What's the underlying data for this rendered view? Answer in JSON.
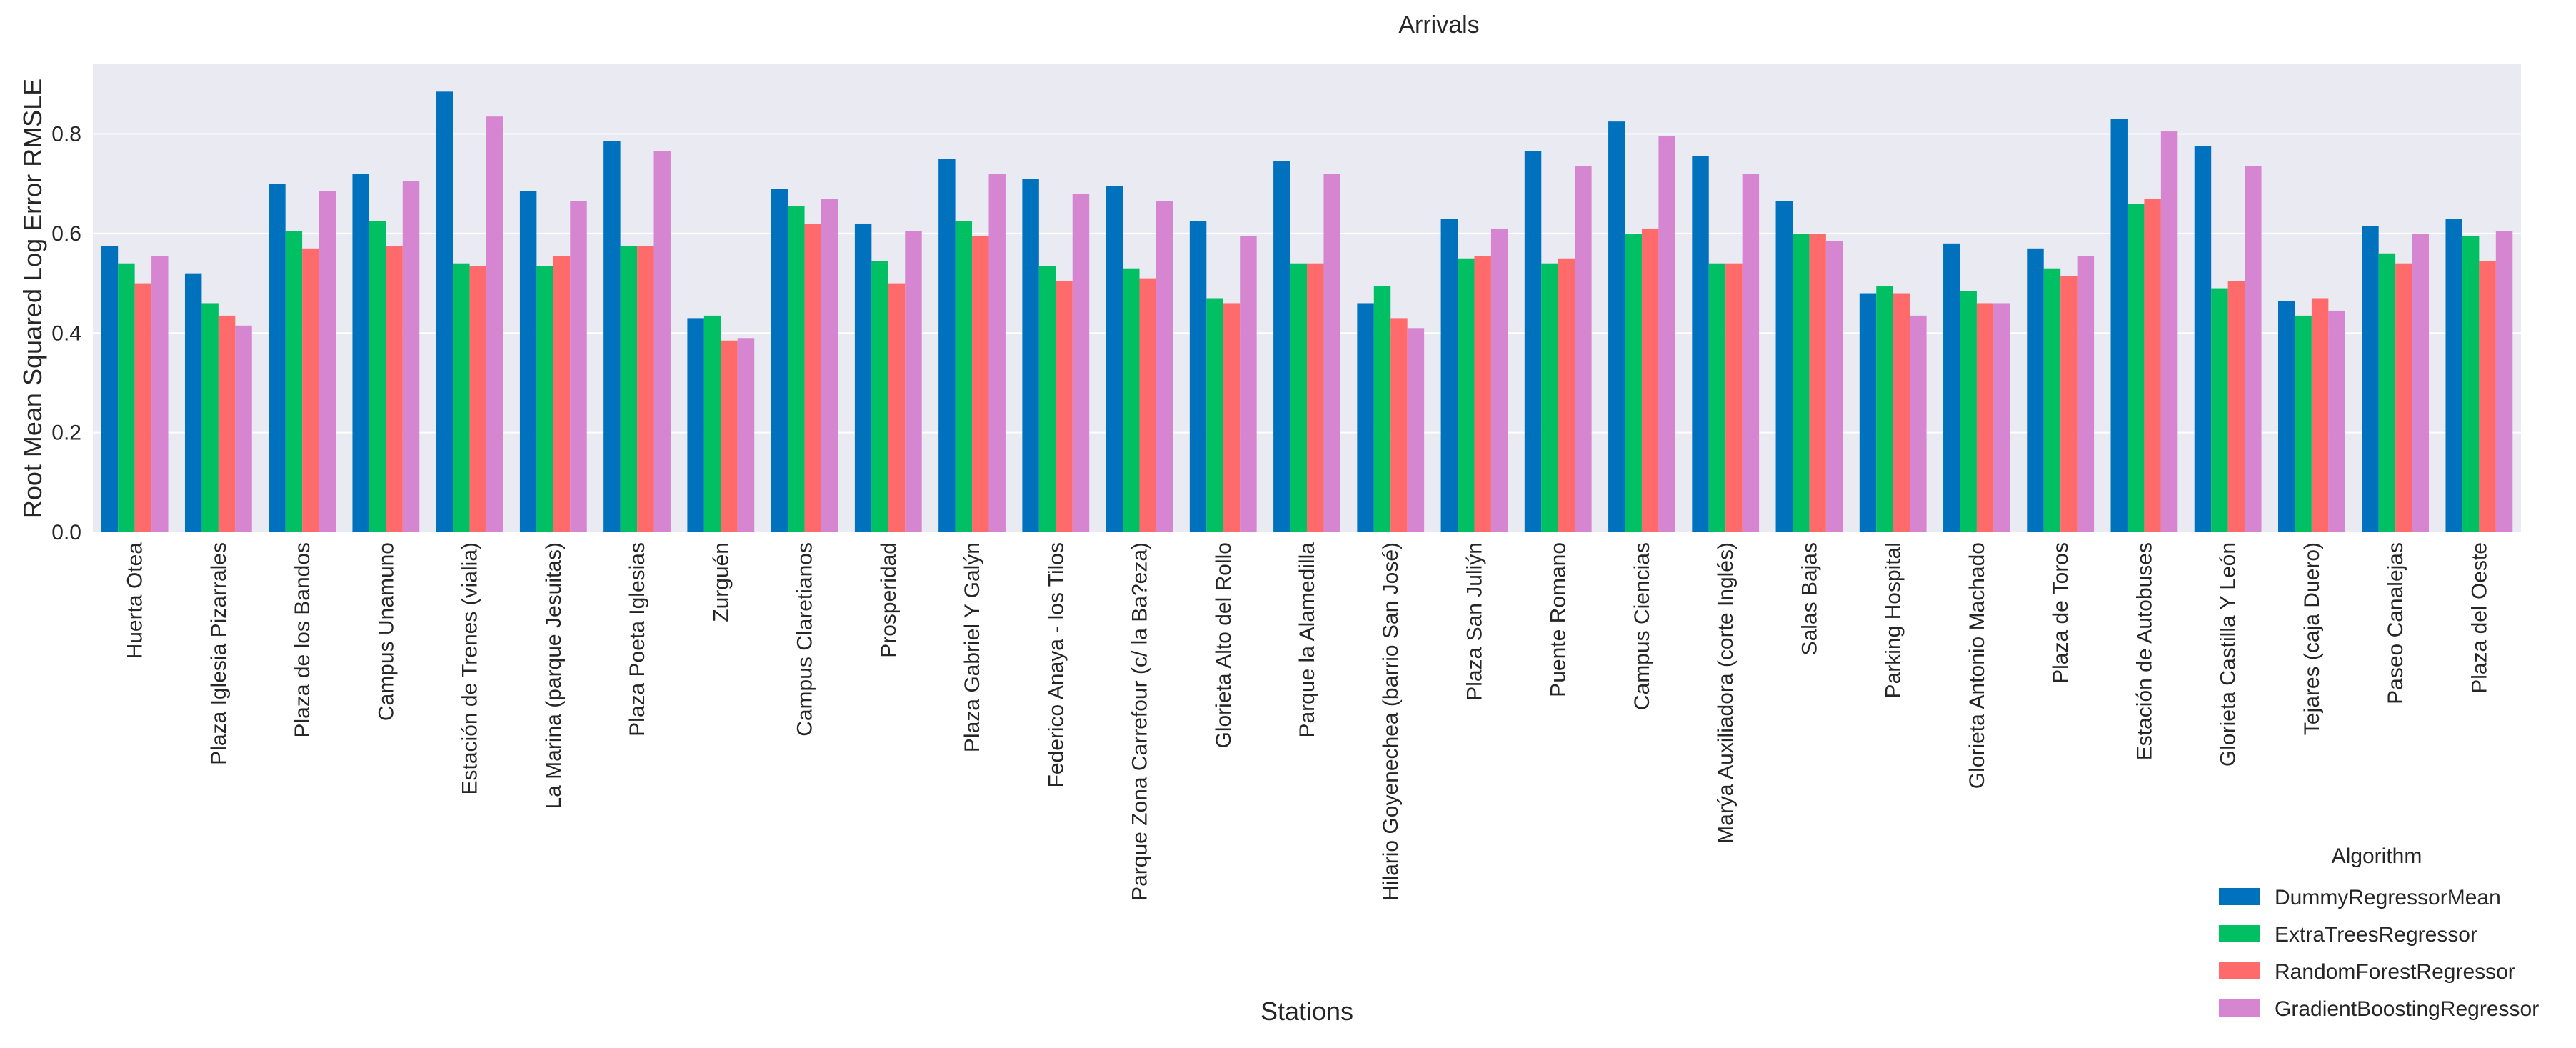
{
  "chart_data": {
    "type": "bar",
    "title": "Arrivals",
    "xlabel": "Stations",
    "ylabel": "Root Mean Squared Log Error RMSLE",
    "ylim": [
      0,
      0.94
    ],
    "yticks": [
      "0.0",
      "0.2",
      "0.4",
      "0.6",
      "0.8"
    ],
    "ytick_values": [
      0,
      0.2,
      0.4,
      0.6,
      0.8
    ],
    "grid": true,
    "legend_position": "bottom-right",
    "legend_title": "Algorithm",
    "categories": [
      "Huerta Otea",
      "Plaza Iglesia Pizarrales",
      "Plaza de los Bandos",
      "Campus Unamuno",
      "Estación de Trenes (vialia)",
      "La Marina (parque Jesuitas)",
      "Plaza Poeta Iglesias",
      "Zurguén",
      "Campus Claretianos",
      "Prosperidad",
      "Plaza Gabriel Y Galýn",
      "Federico Anaya - los Tilos",
      "Parque Zona Carrefour (c/ la Ba?eza)",
      "Glorieta Alto del Rollo",
      "Parque la Alamedilla",
      "Hilario Goyenechea (barrio San José)",
      "Plaza San Juliýn",
      "Puente Romano",
      "Campus Ciencias",
      "Marýa Auxiliadora (corte Inglés)",
      "Salas Bajas",
      "Parking Hospital",
      "Glorieta Antonio Machado",
      "Plaza de Toros",
      "Estación de Autobuses",
      "Glorieta Castilla Y León",
      "Tejares (caja Duero)",
      "Paseo Canalejas",
      "Plaza del Oeste"
    ],
    "series": [
      {
        "name": "DummyRegressorMean",
        "color": "#0072bd",
        "values": [
          0.575,
          0.52,
          0.7,
          0.72,
          0.885,
          0.685,
          0.785,
          0.43,
          0.69,
          0.62,
          0.75,
          0.71,
          0.695,
          0.625,
          0.745,
          0.46,
          0.63,
          0.765,
          0.825,
          0.755,
          0.665,
          0.48,
          0.58,
          0.57,
          0.83,
          0.775,
          0.465,
          0.615,
          0.63
        ]
      },
      {
        "name": "ExtraTreesRegressor",
        "color": "#00c063",
        "values": [
          0.54,
          0.46,
          0.605,
          0.625,
          0.54,
          0.535,
          0.575,
          0.435,
          0.655,
          0.545,
          0.625,
          0.535,
          0.53,
          0.47,
          0.54,
          0.495,
          0.55,
          0.54,
          0.6,
          0.54,
          0.6,
          0.495,
          0.485,
          0.53,
          0.66,
          0.49,
          0.435,
          0.56,
          0.595
        ]
      },
      {
        "name": "RandomForestRegressor",
        "color": "#ff6b6b",
        "values": [
          0.5,
          0.435,
          0.57,
          0.575,
          0.535,
          0.555,
          0.575,
          0.385,
          0.62,
          0.5,
          0.595,
          0.505,
          0.51,
          0.46,
          0.54,
          0.43,
          0.555,
          0.55,
          0.61,
          0.54,
          0.6,
          0.48,
          0.46,
          0.515,
          0.67,
          0.505,
          0.47,
          0.54,
          0.545
        ]
      },
      {
        "name": "GradientBoostingRegressor",
        "color": "#d685d0",
        "values": [
          0.555,
          0.415,
          0.685,
          0.705,
          0.835,
          0.665,
          0.765,
          0.39,
          0.67,
          0.605,
          0.72,
          0.68,
          0.665,
          0.595,
          0.72,
          0.41,
          0.61,
          0.735,
          0.795,
          0.72,
          0.585,
          0.435,
          0.46,
          0.555,
          0.805,
          0.735,
          0.445,
          0.6,
          0.605
        ]
      }
    ]
  }
}
